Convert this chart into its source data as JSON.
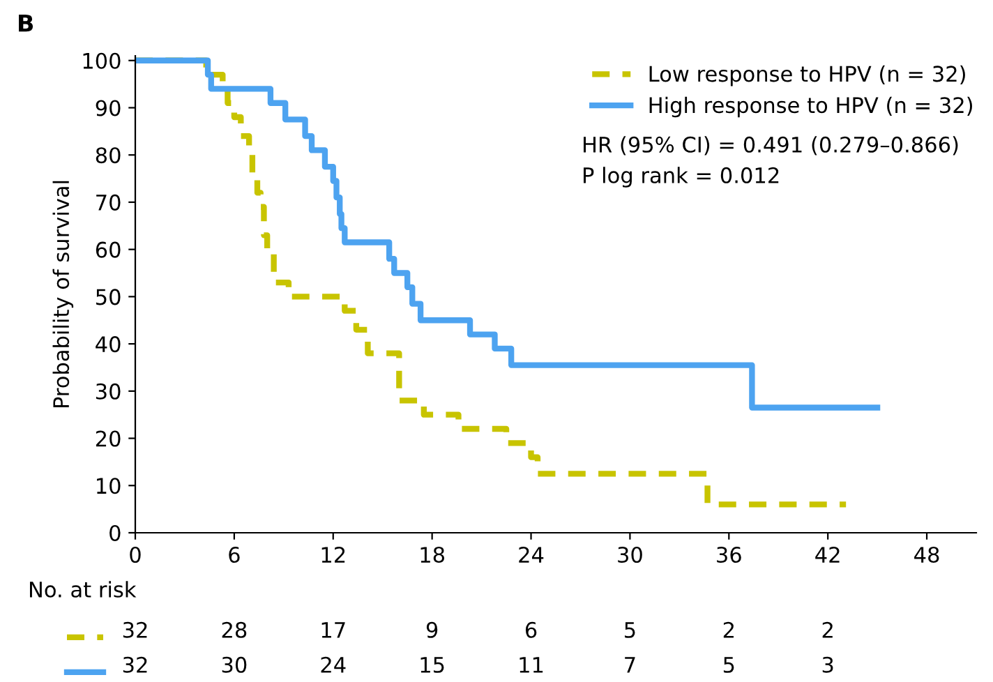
{
  "chart_data": {
    "type": "step",
    "title": "B",
    "ylabel": "Probability of survival",
    "xlim": [
      0,
      51
    ],
    "ylim": [
      0,
      101
    ],
    "xticks": [
      0,
      6,
      12,
      18,
      24,
      30,
      36,
      42,
      48
    ],
    "yticks": [
      0,
      10,
      20,
      30,
      40,
      50,
      60,
      70,
      80,
      90,
      100
    ],
    "grid": false,
    "legend": "top right",
    "series": [
      {
        "name": "Low response to HPV (n = 32)",
        "color": "#c8c400",
        "line_style": "dashed",
        "x": [
          0,
          4.3,
          5.3,
          5.6,
          6.0,
          6.4,
          6.9,
          7.1,
          7.4,
          7.6,
          7.8,
          8.0,
          8.4,
          9.3,
          12.7,
          13.4,
          14.1,
          16.0,
          17.5,
          19.6,
          22.5,
          24.0,
          24.4,
          34.7,
          43.1
        ],
        "values": [
          100,
          97,
          94,
          91,
          88,
          84,
          81,
          75,
          72,
          69,
          63,
          59,
          53,
          50,
          47,
          43,
          38,
          28,
          25,
          22,
          19,
          16,
          12.5,
          6,
          6
        ]
      },
      {
        "name": "High response to HPV (n = 32)",
        "color": "#4da3f0",
        "line_style": "solid",
        "x": [
          0,
          4.4,
          4.6,
          8.2,
          9.1,
          10.3,
          10.7,
          11.5,
          12.0,
          12.2,
          12.4,
          12.5,
          12.7,
          15.4,
          15.7,
          16.5,
          16.8,
          17.3,
          20.3,
          21.8,
          22.8,
          37.4,
          45.0
        ],
        "values": [
          100,
          97,
          94,
          91,
          87.5,
          84,
          81,
          77.5,
          74.5,
          71,
          67.5,
          64.5,
          61.5,
          58,
          55,
          52,
          48.5,
          45,
          42,
          39,
          35.5,
          26.5,
          26.5
        ]
      }
    ],
    "annotations": [
      "HR (95% CI) = 0.491 (0.279–0.866)",
      "P log rank = 0.012",
      "No. at risk",
      "32",
      "28",
      "17",
      "9",
      "6",
      "5",
      "2",
      "2",
      "32",
      "30",
      "24",
      "15",
      "11",
      "7",
      "5",
      "3"
    ]
  }
}
